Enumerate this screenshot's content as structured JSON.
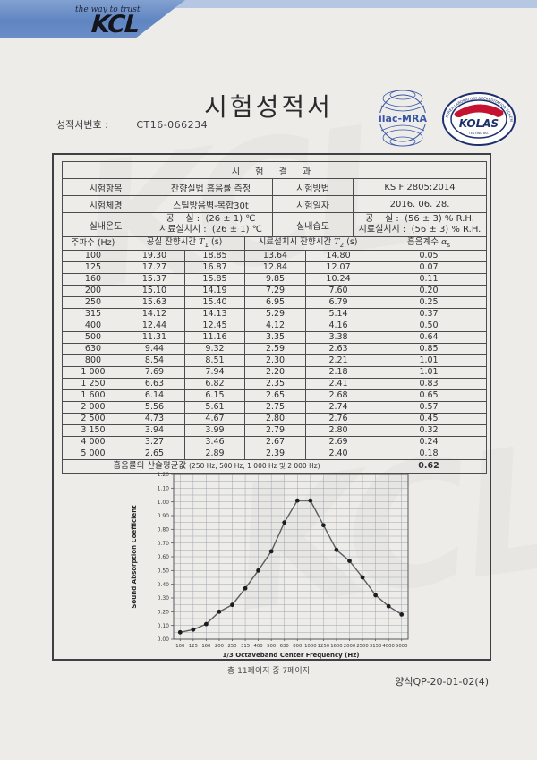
{
  "banner": {
    "tagline": "the way to trust",
    "logo": "KCL"
  },
  "watermark": "KCL",
  "title": "시험성적서",
  "report_no_label": "성적서번호 :",
  "report_no": "CT16-066234",
  "logos": {
    "ilac_text": "ilac-MRA",
    "kolas_text": "KOLAS",
    "kolas_ring_text": "KOREA LABORATORY ACCREDITATION SCHEME",
    "kolas_bottom_text": "TESTING NO.",
    "ilac_color": "#3a57a7",
    "kolas_navy": "#1d2f6e",
    "kolas_red": "#c41230"
  },
  "results_header": "시 험 결 과",
  "info_rows": [
    {
      "label": "시험항목",
      "value": "잔향실법 흡음률 측정",
      "label2": "시험방법",
      "value2": "KS F 2805:2014"
    },
    {
      "label": "시험체명",
      "value": "스틸방음벽-복합30t",
      "label2": "시험일자",
      "value2": "2016. 06. 28."
    },
    {
      "label": "실내온도",
      "value_lines": [
        "공    실 :  (26 ± 1) ℃",
        "시료설치시 :  (26 ± 1) ℃"
      ],
      "label2": "실내습도",
      "value2_lines": [
        "공    실 :  (56 ± 3) % R.H.",
        "시료설치시 :  (56 ± 3) % R.H."
      ]
    }
  ],
  "data_table": {
    "col_freq": "주파수 (Hz)",
    "t1_prefix": "공실 잔향시간",
    "t1_sym": "T",
    "t1_sub": "1",
    "t1_unit": " (s)",
    "t2_prefix": "시료설치시 잔향시간",
    "t2_sym": "T",
    "t2_sub": "2",
    "t2_unit": " (s)",
    "alpha_prefix": "흡음계수",
    "alpha_sym": "α",
    "alpha_sub": "s",
    "rows": [
      [
        "100",
        "19.30",
        "18.85",
        "13.64",
        "14.80",
        "0.05"
      ],
      [
        "125",
        "17.27",
        "16.87",
        "12.84",
        "12.07",
        "0.07"
      ],
      [
        "160",
        "15.37",
        "15.85",
        "9.85",
        "10.24",
        "0.11"
      ],
      [
        "200",
        "15.10",
        "14.19",
        "7.29",
        "7.60",
        "0.20"
      ],
      [
        "250",
        "15.63",
        "15.40",
        "6.95",
        "6.79",
        "0.25"
      ],
      [
        "315",
        "14.12",
        "14.13",
        "5.29",
        "5.14",
        "0.37"
      ],
      [
        "400",
        "12.44",
        "12.45",
        "4.12",
        "4.16",
        "0.50"
      ],
      [
        "500",
        "11.31",
        "11.16",
        "3.35",
        "3.38",
        "0.64"
      ],
      [
        "630",
        "9.44",
        "9.32",
        "2.59",
        "2.63",
        "0.85"
      ],
      [
        "800",
        "8.54",
        "8.51",
        "2.30",
        "2.21",
        "1.01"
      ],
      [
        "1 000",
        "7.69",
        "7.94",
        "2.20",
        "2.18",
        "1.01"
      ],
      [
        "1 250",
        "6.63",
        "6.82",
        "2.35",
        "2.41",
        "0.83"
      ],
      [
        "1 600",
        "6.14",
        "6.15",
        "2.65",
        "2.68",
        "0.65"
      ],
      [
        "2 000",
        "5.56",
        "5.61",
        "2.75",
        "2.74",
        "0.57"
      ],
      [
        "2 500",
        "4.73",
        "4.67",
        "2.80",
        "2.76",
        "0.45"
      ],
      [
        "3 150",
        "3.94",
        "3.99",
        "2.79",
        "2.80",
        "0.32"
      ],
      [
        "4 000",
        "3.27",
        "3.46",
        "2.67",
        "2.69",
        "0.24"
      ],
      [
        "5 000",
        "2.65",
        "2.89",
        "2.39",
        "2.40",
        "0.18"
      ]
    ],
    "avg_label": "흡음률의 산술평균값",
    "avg_note": "(250 Hz, 500 Hz, 1 000 Hz 및 2 000 Hz)",
    "avg_value": "0.62"
  },
  "chart_data": {
    "type": "line",
    "categories": [
      "100",
      "125",
      "160",
      "200",
      "250",
      "315",
      "400",
      "500",
      "630",
      "800",
      "1000",
      "1250",
      "1600",
      "2000",
      "2500",
      "3150",
      "4000",
      "5000"
    ],
    "values": [
      0.05,
      0.07,
      0.11,
      0.2,
      0.25,
      0.37,
      0.5,
      0.64,
      0.85,
      1.01,
      1.01,
      0.83,
      0.65,
      0.57,
      0.45,
      0.32,
      0.24,
      0.18
    ],
    "xlabel": "1/3 Octaveband Center Frequency (Hz)",
    "ylabel": "Sound Absorption Coefficient",
    "ylim": [
      0,
      1.2
    ],
    "ytick_step": 0.1,
    "minor_step": 0.05,
    "grid": true,
    "legend": "none",
    "line_color": "#5a5d62",
    "marker_color": "#1c1d1f",
    "grid_color": "#9fa6b0"
  },
  "footer": {
    "page_info": "총 11페이지 중 7페이지",
    "form_no": "양식QP-20-01-02(4)"
  }
}
